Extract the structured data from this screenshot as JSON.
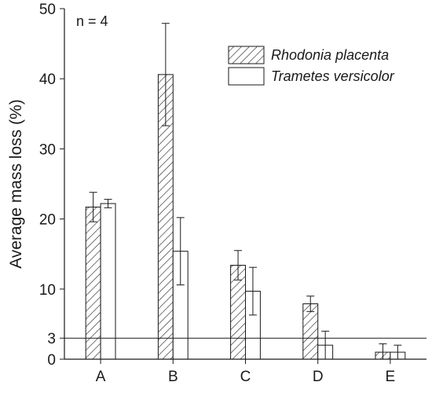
{
  "chart_data": {
    "type": "bar",
    "title": "",
    "xlabel": "",
    "ylabel": "Average mass loss (%)",
    "ylim": [
      0,
      50
    ],
    "yticks": [
      0,
      3,
      10,
      20,
      30,
      40,
      50
    ],
    "categories": [
      "A",
      "B",
      "C",
      "D",
      "E"
    ],
    "series": [
      {
        "name": "Rhodonia placenta",
        "pattern": "hatched",
        "values": [
          21.7,
          40.6,
          13.4,
          7.9,
          1.0
        ],
        "errors": [
          2.1,
          7.3,
          2.1,
          1.1,
          1.2
        ]
      },
      {
        "name": "Trametes versicolor",
        "pattern": "open",
        "values": [
          22.2,
          15.4,
          9.7,
          2.0,
          1.0
        ],
        "errors": [
          0.6,
          4.8,
          3.4,
          2.0,
          1.0
        ]
      }
    ],
    "reference_line": {
      "value": 3
    },
    "annotation": "n = 4",
    "legend_position": "top-right",
    "grid": false
  }
}
